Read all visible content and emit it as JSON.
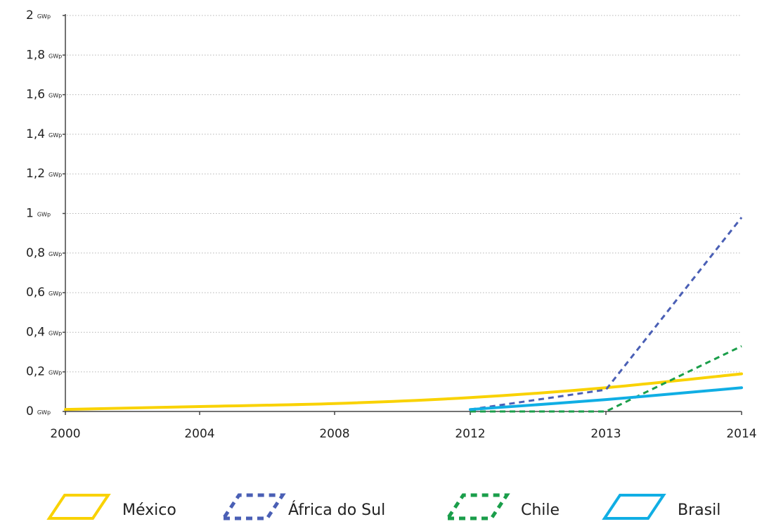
{
  "chart_data": {
    "type": "line",
    "title": "",
    "xlabel": "",
    "ylabel": "",
    "x": [
      "2000",
      "2004",
      "2008",
      "2012",
      "2013",
      "2014"
    ],
    "y_unit": "GWp",
    "y_ticks": [
      "0",
      "0,2",
      "0,4",
      "0,6",
      "0,8",
      "1",
      "1,2",
      "1,4",
      "1,6",
      "1,8",
      "2"
    ],
    "y_tick_values": [
      0,
      0.2,
      0.4,
      0.6,
      0.8,
      1,
      1.2,
      1.4,
      1.6,
      1.8,
      2
    ],
    "ylim": [
      0,
      2
    ],
    "grid": true,
    "legend_position": "bottom",
    "series": [
      {
        "name": "México",
        "color": "#f9d200",
        "style": "solid",
        "points": [
          [
            "2000",
            0.01
          ],
          [
            "2004",
            0.025
          ],
          [
            "2008",
            0.04
          ],
          [
            "2012",
            0.07
          ],
          [
            "2013",
            0.12
          ],
          [
            "2014",
            0.19
          ]
        ]
      },
      {
        "name": "África do Sul",
        "color": "#4a5fb5",
        "style": "dashed",
        "points": [
          [
            "2012",
            0.01
          ],
          [
            "2013",
            0.11
          ],
          [
            "2014",
            0.98
          ]
        ]
      },
      {
        "name": "Chile",
        "color": "#1a9e4a",
        "style": "dashed",
        "points": [
          [
            "2012",
            0.0
          ],
          [
            "2013",
            0.0
          ],
          [
            "2014",
            0.33
          ]
        ]
      },
      {
        "name": "Brasil",
        "color": "#10aee4",
        "style": "solid",
        "points": [
          [
            "2012",
            0.01
          ],
          [
            "2013",
            0.06
          ],
          [
            "2014",
            0.12
          ]
        ]
      }
    ]
  }
}
